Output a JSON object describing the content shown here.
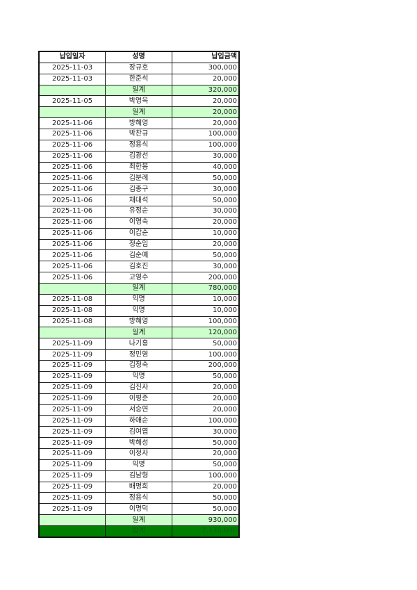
{
  "headers": [
    "납입일자",
    "성명",
    "납입금액"
  ],
  "rows": [
    {
      "date": "2025-11-03",
      "name": "장규호",
      "amount": "300,000",
      "type": "row"
    },
    {
      "date": "2025-11-03",
      "name": "한준석",
      "amount": "20,000",
      "type": "row"
    },
    {
      "date": "",
      "name": "일계",
      "amount": "320,000",
      "type": "sub"
    },
    {
      "date": "2025-11-05",
      "name": "박영옥",
      "amount": "20,000",
      "type": "row"
    },
    {
      "date": "",
      "name": "일계",
      "amount": "20,000",
      "type": "sub"
    },
    {
      "date": "2025-11-06",
      "name": "방혜영",
      "amount": "20,000",
      "type": "row"
    },
    {
      "date": "2025-11-06",
      "name": "박찬규",
      "amount": "100,000",
      "type": "row"
    },
    {
      "date": "2025-11-06",
      "name": "정용식",
      "amount": "100,000",
      "type": "row"
    },
    {
      "date": "2025-11-06",
      "name": "김광선",
      "amount": "30,000",
      "type": "row"
    },
    {
      "date": "2025-11-06",
      "name": "최한봉",
      "amount": "40,000",
      "type": "row"
    },
    {
      "date": "2025-11-06",
      "name": "김분례",
      "amount": "50,000",
      "type": "row"
    },
    {
      "date": "2025-11-06",
      "name": "김종구",
      "amount": "30,000",
      "type": "row"
    },
    {
      "date": "2025-11-06",
      "name": "채대석",
      "amount": "50,000",
      "type": "row"
    },
    {
      "date": "2025-11-06",
      "name": "유정순",
      "amount": "30,000",
      "type": "row"
    },
    {
      "date": "2025-11-06",
      "name": "이영숙",
      "amount": "20,000",
      "type": "row"
    },
    {
      "date": "2025-11-06",
      "name": "이갑순",
      "amount": "10,000",
      "type": "row"
    },
    {
      "date": "2025-11-06",
      "name": "정순임",
      "amount": "20,000",
      "type": "row"
    },
    {
      "date": "2025-11-06",
      "name": "김순예",
      "amount": "50,000",
      "type": "row"
    },
    {
      "date": "2025-11-06",
      "name": "김호진",
      "amount": "30,000",
      "type": "row"
    },
    {
      "date": "2025-11-06",
      "name": "고영수",
      "amount": "200,000",
      "type": "row"
    },
    {
      "date": "",
      "name": "일계",
      "amount": "780,000",
      "type": "sub"
    },
    {
      "date": "2025-11-08",
      "name": "익명",
      "amount": "10,000",
      "type": "row"
    },
    {
      "date": "2025-11-08",
      "name": "익명",
      "amount": "10,000",
      "type": "row"
    },
    {
      "date": "2025-11-08",
      "name": "방혜영",
      "amount": "100,000",
      "type": "row"
    },
    {
      "date": "",
      "name": "일계",
      "amount": "120,000",
      "type": "sub"
    },
    {
      "date": "2025-11-09",
      "name": "나기홍",
      "amount": "50,000",
      "type": "row"
    },
    {
      "date": "2025-11-09",
      "name": "정민영",
      "amount": "100,000",
      "type": "row"
    },
    {
      "date": "2025-11-09",
      "name": "김정숙",
      "amount": "200,000",
      "type": "row"
    },
    {
      "date": "2025-11-09",
      "name": "익명",
      "amount": "50,000",
      "type": "row"
    },
    {
      "date": "2025-11-09",
      "name": "김진자",
      "amount": "20,000",
      "type": "row"
    },
    {
      "date": "2025-11-09",
      "name": "이평준",
      "amount": "20,000",
      "type": "row"
    },
    {
      "date": "2025-11-09",
      "name": "서승연",
      "amount": "20,000",
      "type": "row"
    },
    {
      "date": "2025-11-09",
      "name": "하애순",
      "amount": "100,000",
      "type": "row"
    },
    {
      "date": "2025-11-09",
      "name": "김여엽",
      "amount": "30,000",
      "type": "row"
    },
    {
      "date": "2025-11-09",
      "name": "박혜성",
      "amount": "50,000",
      "type": "row"
    },
    {
      "date": "2025-11-09",
      "name": "이정자",
      "amount": "20,000",
      "type": "row"
    },
    {
      "date": "2025-11-09",
      "name": "익명",
      "amount": "50,000",
      "type": "row"
    },
    {
      "date": "2025-11-09",
      "name": "김남형",
      "amount": "100,000",
      "type": "row"
    },
    {
      "date": "2025-11-09",
      "name": "배명희",
      "amount": "20,000",
      "type": "row"
    },
    {
      "date": "2025-11-09",
      "name": "정용식",
      "amount": "50,000",
      "type": "row"
    },
    {
      "date": "2025-11-09",
      "name": "이명덕",
      "amount": "50,000",
      "type": "row"
    },
    {
      "date": "",
      "name": "일계",
      "amount": "930,000",
      "type": "sub"
    },
    {
      "date": "",
      "name": "합계",
      "amount": "2,170,000",
      "type": "total"
    }
  ],
  "colors": {
    "subtotal_bg": "#ccffcc",
    "total_bg": "#008000"
  }
}
